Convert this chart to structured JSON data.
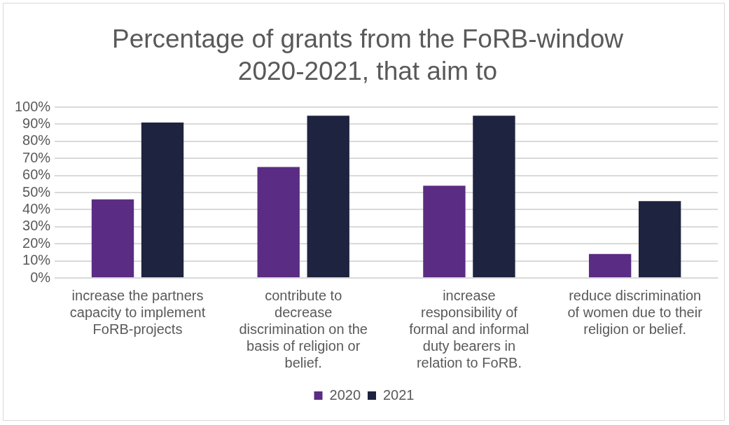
{
  "chart_data": {
    "type": "bar",
    "title": "Percentage of grants from the FoRB-window 2020-2021, that aim to",
    "categories": [
      "increase the partners capacity to implement FoRB-projects",
      "contribute to decrease discrimination on the basis of religion or belief.",
      "increase responsibility of formal and informal duty bearers in relation to FoRB.",
      "reduce discrimination of women due to their religion or belief."
    ],
    "series": [
      {
        "name": "2020",
        "color": "#5b2c83",
        "values": [
          46,
          65,
          54,
          14
        ]
      },
      {
        "name": "2021",
        "color": "#1e2340",
        "values": [
          91,
          95,
          95,
          45
        ]
      }
    ],
    "ylim": [
      0,
      100
    ],
    "yticks": [
      {
        "value": 0,
        "label": "0%"
      },
      {
        "value": 10,
        "label": "10%"
      },
      {
        "value": 20,
        "label": "20%"
      },
      {
        "value": 30,
        "label": "30%"
      },
      {
        "value": 40,
        "label": "40%"
      },
      {
        "value": 50,
        "label": "50%"
      },
      {
        "value": 60,
        "label": "60%"
      },
      {
        "value": 70,
        "label": "70%"
      },
      {
        "value": 80,
        "label": "80%"
      },
      {
        "value": 90,
        "label": "90%"
      },
      {
        "value": 100,
        "label": "100%"
      }
    ],
    "grid": "y",
    "legend": "bottom"
  }
}
